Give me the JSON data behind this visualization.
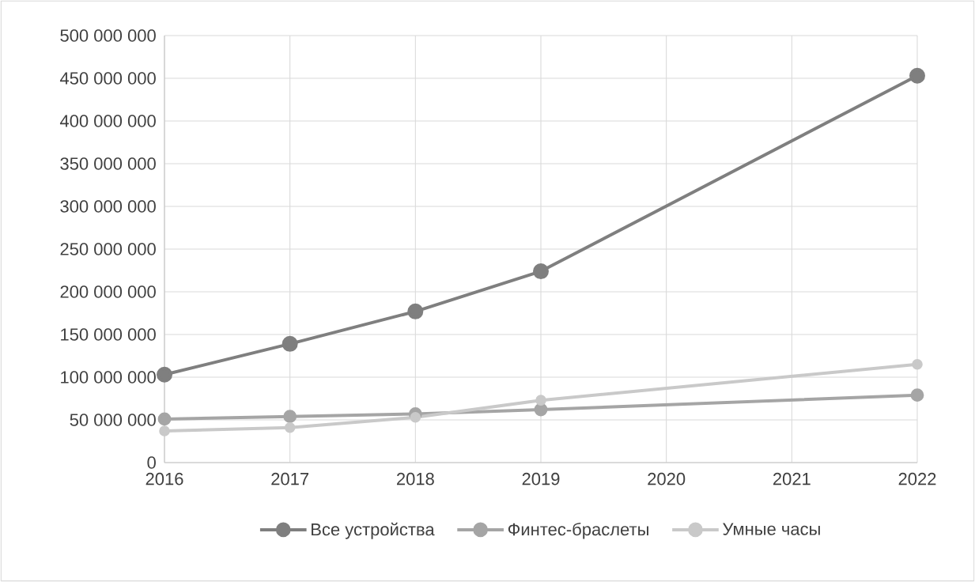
{
  "chart_data": {
    "type": "line",
    "series": [
      {
        "name": "Все устройства",
        "color": "#7f7f7f",
        "x": [
          2016,
          2017,
          2018,
          2019,
          2022
        ],
        "values": [
          103000000,
          139000000,
          177000000,
          224000000,
          453000000
        ]
      },
      {
        "name": "Финтес-браслеты",
        "color": "#a5a5a5",
        "x": [
          2016,
          2017,
          2018,
          2019,
          2022
        ],
        "values": [
          51000000,
          54000000,
          57000000,
          62000000,
          79000000
        ]
      },
      {
        "name": "Умные часы",
        "color": "#c9c9c9",
        "x": [
          2016,
          2017,
          2018,
          2019,
          2022
        ],
        "values": [
          37000000,
          41000000,
          53000000,
          73000000,
          115000000
        ]
      }
    ],
    "xlim": [
      2016,
      2022
    ],
    "xticks": [
      2016,
      2017,
      2018,
      2019,
      2020,
      2021,
      2022
    ],
    "ylim": [
      0,
      500000000
    ],
    "yticks": [
      {
        "value": 0,
        "label": "0"
      },
      {
        "value": 50000000,
        "label": "50 000 000"
      },
      {
        "value": 100000000,
        "label": "100 000 000"
      },
      {
        "value": 150000000,
        "label": "150 000 000"
      },
      {
        "value": 200000000,
        "label": "200 000 000"
      },
      {
        "value": 250000000,
        "label": "250 000 000"
      },
      {
        "value": 300000000,
        "label": "300 000 000"
      },
      {
        "value": 350000000,
        "label": "350 000 000"
      },
      {
        "value": 400000000,
        "label": "400 000 000"
      },
      {
        "value": 450000000,
        "label": "450 000 000"
      },
      {
        "value": 500000000,
        "label": "500 000 000"
      }
    ],
    "grid": true,
    "legend": "bottom",
    "marker": "circle",
    "line_style": "solid"
  }
}
